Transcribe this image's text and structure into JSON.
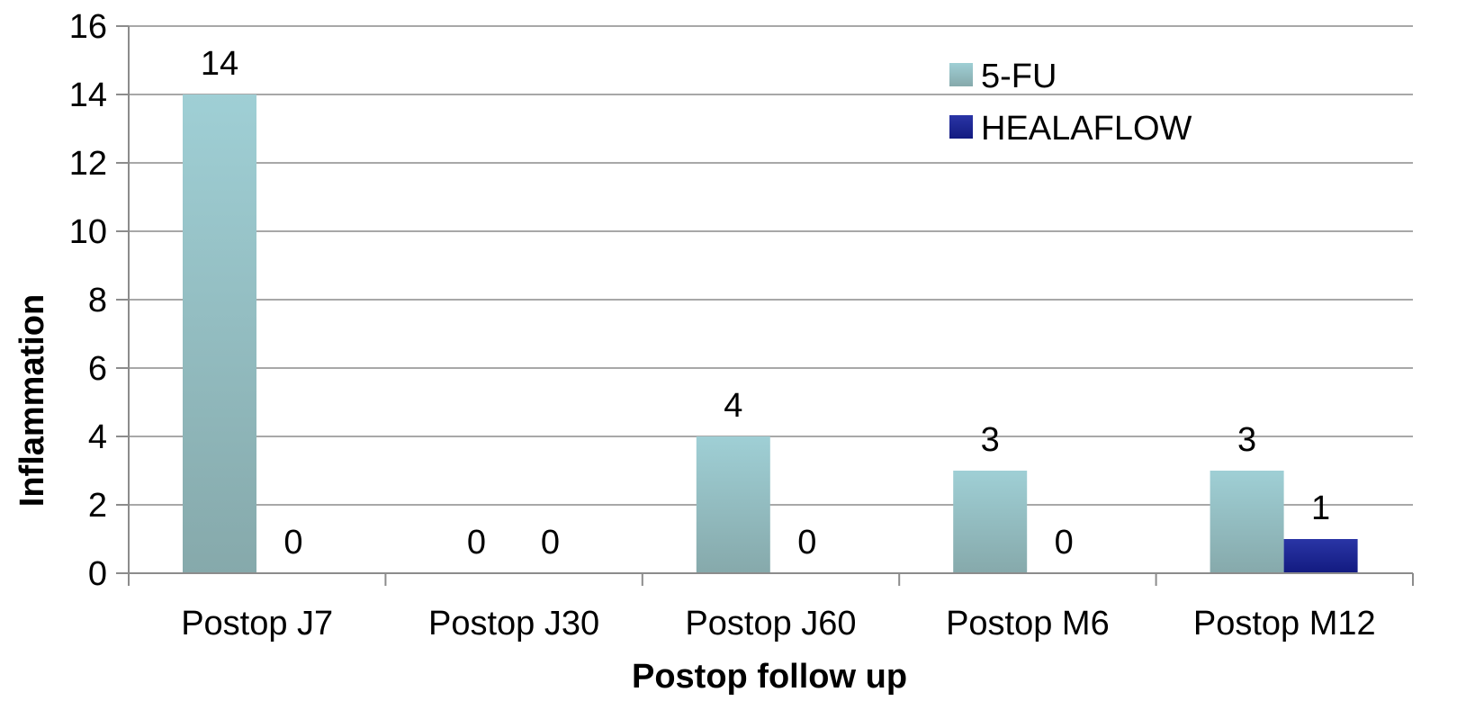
{
  "chart_data": {
    "type": "bar",
    "categories": [
      "Postop J7",
      "Postop J30",
      "Postop J60",
      "Postop M6",
      "Postop M12"
    ],
    "series": [
      {
        "name": "5-FU",
        "values": [
          14,
          0,
          4,
          3,
          3
        ],
        "color": "#9fcfd5",
        "color_dark": "#86a9ab"
      },
      {
        "name": "HEALAFLOW",
        "values": [
          0,
          0,
          0,
          0,
          1
        ],
        "color": "#2a35a6",
        "color_dark": "#121a80"
      }
    ],
    "title": "",
    "xlabel": "Postop follow up",
    "ylabel": "Inflammation",
    "ylim": [
      0,
      16
    ],
    "yticks": [
      0,
      2,
      4,
      6,
      8,
      10,
      12,
      14,
      16
    ],
    "grid": true,
    "legend_position": "top-right"
  }
}
